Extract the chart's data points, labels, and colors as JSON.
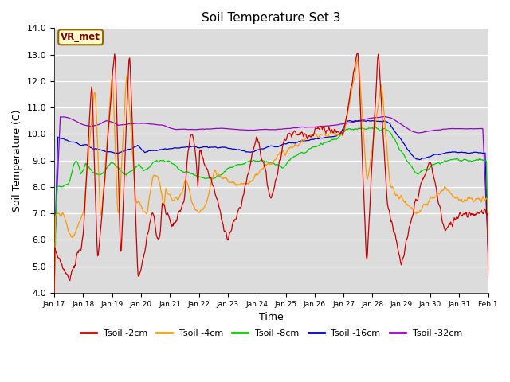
{
  "title": "Soil Temperature Set 3",
  "xlabel": "Time",
  "ylabel": "Soil Temperature (C)",
  "ylim": [
    4.0,
    14.0
  ],
  "yticks": [
    4.0,
    5.0,
    6.0,
    7.0,
    8.0,
    9.0,
    10.0,
    11.0,
    12.0,
    13.0,
    14.0
  ],
  "xtick_labels": [
    "Jan 17",
    "Jan 18",
    "Jan 19",
    "Jan 20",
    "Jan 21",
    "Jan 22",
    "Jan 23",
    "Jan 24",
    "Jan 25",
    "Jan 26",
    "Jan 27",
    "Jan 28",
    "Jan 29",
    "Jan 30",
    "Jan 31",
    "Feb 1"
  ],
  "legend_labels": [
    "Tsoil -2cm",
    "Tsoil -4cm",
    "Tsoil -8cm",
    "Tsoil -16cm",
    "Tsoil -32cm"
  ],
  "line_colors": [
    "#cc0000",
    "#ff9900",
    "#00cc00",
    "#0000cc",
    "#9900cc"
  ],
  "annotation_text": "VR_met",
  "annotation_bg": "#ffffcc",
  "annotation_border": "#996600",
  "plot_bg": "#dcdcdc",
  "n_points": 720,
  "days": 15
}
